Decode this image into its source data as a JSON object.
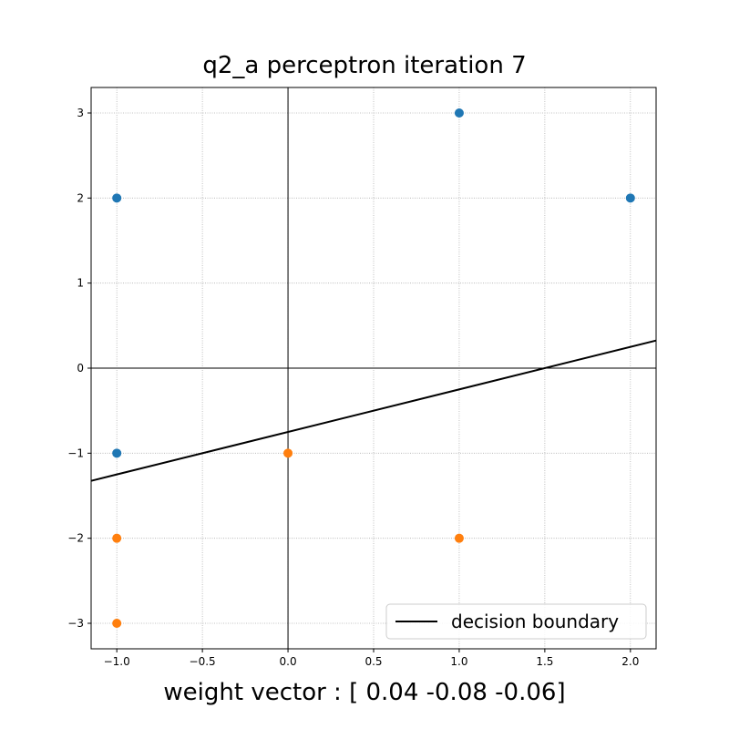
{
  "chart_data": {
    "type": "scatter",
    "title": "q2_a perceptron iteration 7",
    "xlabel": "weight vector : [ 0.04 -0.08 -0.06]",
    "ylabel": "",
    "xlim": [
      -1.15,
      2.15
    ],
    "ylim": [
      -3.3,
      3.3
    ],
    "x_ticks": [
      -1.0,
      -0.5,
      0.0,
      0.5,
      1.0,
      1.5,
      2.0
    ],
    "x_tick_labels": [
      "−1.0",
      "−0.5",
      "0.0",
      "0.5",
      "1.0",
      "1.5",
      "2.0"
    ],
    "y_ticks": [
      -3,
      -2,
      -1,
      0,
      1,
      2,
      3
    ],
    "y_tick_labels": [
      "−3",
      "−2",
      "−1",
      "0",
      "1",
      "2",
      "3"
    ],
    "grid": true,
    "axes_lines_through_origin": true,
    "legend_position": "lower right",
    "series": [
      {
        "color": "#1f77b4",
        "points": [
          [
            -1,
            2
          ],
          [
            1,
            3
          ],
          [
            2,
            2
          ],
          [
            -1,
            -1
          ]
        ]
      },
      {
        "color": "#ff7f0e",
        "points": [
          [
            0,
            -1
          ],
          [
            -1,
            -2
          ],
          [
            1,
            -2
          ],
          [
            -1,
            -3
          ]
        ]
      }
    ],
    "lines": [
      {
        "name": "decision boundary",
        "color": "#000000",
        "points": [
          [
            -1.15,
            -1.325
          ],
          [
            2.15,
            0.325
          ]
        ]
      }
    ]
  }
}
